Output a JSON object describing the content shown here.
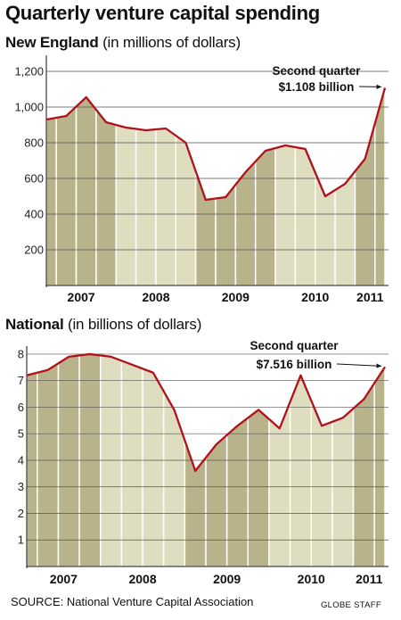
{
  "title": "Quarterly venture capital spending",
  "source": "SOURCE: National Venture Capital Association",
  "credit": "GLOBE STAFF",
  "colors": {
    "bar_dark": "#b9b38b",
    "bar_light": "#deddbf",
    "line": "#b0121b",
    "grid": "#555555"
  },
  "chart_data": [
    {
      "type": "area",
      "title": "New England",
      "subtitle": "(in millions of dollars)",
      "year_labels": [
        "2007",
        "2008",
        "2009",
        "2010",
        "2011"
      ],
      "quarters": [
        "2007 Q1",
        "2007 Q2",
        "2007 Q3",
        "2007 Q4",
        "2008 Q1",
        "2008 Q2",
        "2008 Q3",
        "2008 Q4",
        "2009 Q1",
        "2009 Q2",
        "2009 Q3",
        "2009 Q4",
        "2010 Q1",
        "2010 Q2",
        "2010 Q3",
        "2010 Q4",
        "2011 Q1",
        "2011 Q2"
      ],
      "values": [
        930,
        950,
        1055,
        915,
        885,
        870,
        880,
        800,
        480,
        495,
        635,
        755,
        785,
        765,
        500,
        570,
        710,
        1108
      ],
      "ylim": [
        0,
        1300
      ],
      "yticks": [
        "200",
        "400",
        "600",
        "800",
        "1,000",
        "1,200"
      ],
      "ytick_values": [
        200,
        400,
        600,
        800,
        1000,
        1200
      ],
      "annotation_line1": "Second quarter",
      "annotation_line2": "$1.108 billion",
      "grid": true
    },
    {
      "type": "area",
      "title": "National",
      "subtitle": "(in billions of dollars)",
      "year_labels": [
        "2007",
        "2008",
        "2009",
        "2010",
        "2011"
      ],
      "quarters": [
        "2007 Q1",
        "2007 Q2",
        "2007 Q3",
        "2007 Q4",
        "2008 Q1",
        "2008 Q2",
        "2008 Q3",
        "2008 Q4",
        "2009 Q1",
        "2009 Q2",
        "2009 Q3",
        "2009 Q4",
        "2010 Q1",
        "2010 Q2",
        "2010 Q3",
        "2010 Q4",
        "2011 Q1",
        "2011 Q2"
      ],
      "values": [
        7.2,
        7.4,
        7.9,
        8.0,
        7.9,
        7.6,
        7.3,
        5.9,
        3.6,
        4.6,
        5.3,
        5.9,
        5.2,
        7.2,
        5.3,
        5.6,
        6.3,
        7.516
      ],
      "ylim": [
        0,
        8.3
      ],
      "yticks": [
        "1",
        "2",
        "3",
        "4",
        "5",
        "6",
        "7",
        "8"
      ],
      "ytick_values": [
        1,
        2,
        3,
        4,
        5,
        6,
        7,
        8
      ],
      "annotation_line1": "Second quarter",
      "annotation_line2": "$7.516 billion",
      "grid": true
    }
  ]
}
